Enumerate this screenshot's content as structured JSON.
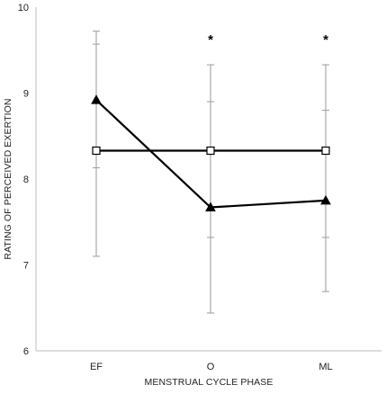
{
  "chart_data": {
    "type": "line",
    "xlabel": "MENSTRUAL CYCLE PHASE",
    "ylabel": "RATING OF PERCEIVED EXERTION",
    "categories": [
      "EF",
      "O",
      "ML"
    ],
    "ylim": [
      6,
      10
    ],
    "yticks": [
      "6",
      "7",
      "8",
      "9",
      "10"
    ],
    "grid": false,
    "series": [
      {
        "marker": "filled-triangle",
        "values": [
          8.92,
          7.67,
          7.75
        ],
        "error_bars": [
          {
            "low": 7.1,
            "high": 9.72
          },
          {
            "low": 6.44,
            "high": 8.9
          },
          {
            "low": 6.69,
            "high": 8.8
          }
        ]
      },
      {
        "marker": "open-square",
        "values": [
          8.33,
          8.33,
          8.33
        ],
        "error_bars": [
          {
            "low": 8.13,
            "high": 9.57
          },
          {
            "low": 7.32,
            "high": 9.33
          },
          {
            "low": 7.32,
            "high": 9.33
          }
        ]
      }
    ],
    "annotations": [
      {
        "category": "O",
        "text": "*"
      },
      {
        "category": "ML",
        "text": "*"
      }
    ]
  }
}
